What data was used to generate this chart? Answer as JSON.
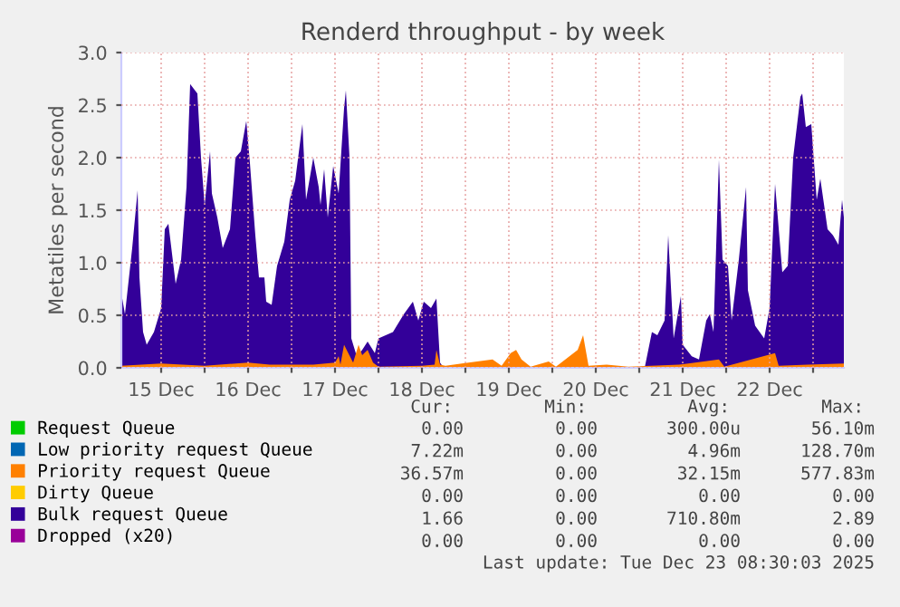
{
  "chart_data": {
    "type": "area",
    "title": "Renderd throughput - by week",
    "ylabel": "Metatiles per second",
    "xlim": [
      "2025-12-15T01:00",
      "2025-12-23T08:30"
    ],
    "xticks": [
      {
        "value": "2025-12-15T12:00",
        "label": "15 Dec"
      },
      {
        "value": "2025-12-16T00:00",
        "label": null
      },
      {
        "value": "2025-12-16T12:00",
        "label": "16 Dec"
      },
      {
        "value": "2025-12-17T00:00",
        "label": null
      },
      {
        "value": "2025-12-17T12:00",
        "label": "17 Dec"
      },
      {
        "value": "2025-12-18T00:00",
        "label": null
      },
      {
        "value": "2025-12-18T12:00",
        "label": "18 Dec"
      },
      {
        "value": "2025-12-19T00:00",
        "label": null
      },
      {
        "value": "2025-12-19T12:00",
        "label": "19 Dec"
      },
      {
        "value": "2025-12-20T00:00",
        "label": null
      },
      {
        "value": "2025-12-20T12:00",
        "label": "20 Dec"
      },
      {
        "value": "2025-12-21T00:00",
        "label": null
      },
      {
        "value": "2025-12-21T12:00",
        "label": "21 Dec"
      },
      {
        "value": "2025-12-22T00:00",
        "label": null
      },
      {
        "value": "2025-12-22T12:00",
        "label": "22 Dec"
      },
      {
        "value": "2025-12-23T00:00",
        "label": null
      }
    ],
    "ylim": [
      0,
      3.0
    ],
    "yticks": [
      {
        "value": 0,
        "label": "0.0"
      },
      {
        "value": 0.5,
        "label": "0.5"
      },
      {
        "value": 1.0,
        "label": "1.0"
      },
      {
        "value": 1.5,
        "label": "1.5"
      },
      {
        "value": 2.0,
        "label": "2.0"
      },
      {
        "value": 2.5,
        "label": "2.5"
      },
      {
        "value": 3.0,
        "label": "3.0"
      }
    ],
    "grid": true,
    "legend": "bottom",
    "series": [
      {
        "name": "Request Queue",
        "color": "#00cc00"
      },
      {
        "name": "Low priority request Queue",
        "color": "#0066b3"
      },
      {
        "name": "Priority request Queue",
        "color": "#ff8000",
        "x": [
          "2025-12-15T01:00",
          "2025-12-15T12:00",
          "2025-12-16T00:00",
          "2025-12-16T12:00",
          "2025-12-16T18:00",
          "2025-12-17T06:00",
          "2025-12-17T12:00",
          "2025-12-17T13:00",
          "2025-12-17T13:30",
          "2025-12-17T14:30",
          "2025-12-17T15:30",
          "2025-12-17T17:00",
          "2025-12-17T18:30",
          "2025-12-17T19:30",
          "2025-12-17T21:00",
          "2025-12-17T22:30",
          "2025-12-18T00:00",
          "2025-12-18T12:00",
          "2025-12-18T15:30",
          "2025-12-18T16:00",
          "2025-12-18T17:00",
          "2025-12-18T18:30",
          "2025-12-19T07:30",
          "2025-12-19T10:00",
          "2025-12-19T12:30",
          "2025-12-19T14:00",
          "2025-12-19T15:30",
          "2025-12-19T18:00",
          "2025-12-19T23:00",
          "2025-12-20T01:00",
          "2025-12-20T07:00",
          "2025-12-20T08:30",
          "2025-12-20T10:00",
          "2025-12-20T15:00",
          "2025-12-20T21:00",
          "2025-12-21T11:00",
          "2025-12-21T22:00",
          "2025-12-21T23:30",
          "2025-12-22T13:30",
          "2025-12-22T14:30",
          "2025-12-22T22:30",
          "2025-12-23T08:30"
        ],
        "values": [
          0.02,
          0.04,
          0.02,
          0.05,
          0.03,
          0.03,
          0.05,
          0.11,
          0.03,
          0.22,
          0.15,
          0.05,
          0.22,
          0.12,
          0.17,
          0.05,
          0.01,
          0.02,
          0.03,
          0.17,
          0.03,
          0.02,
          0.08,
          0.02,
          0.14,
          0.17,
          0.08,
          0.01,
          0.06,
          0.01,
          0.17,
          0.31,
          0.02,
          0.03,
          0.01,
          0.03,
          0.08,
          0.01,
          0.14,
          0.02,
          0.03,
          0.04
        ]
      },
      {
        "name": "Dirty Queue",
        "color": "#ffcc00"
      },
      {
        "name": "Bulk request Queue",
        "color": "#330099",
        "x": [
          "2025-12-15T01:00",
          "2025-12-15T02:00",
          "2025-12-15T04:00",
          "2025-12-15T05:30",
          "2025-12-15T06:00",
          "2025-12-15T07:00",
          "2025-12-15T08:00",
          "2025-12-15T10:00",
          "2025-12-15T12:00",
          "2025-12-15T13:00",
          "2025-12-15T14:00",
          "2025-12-15T16:00",
          "2025-12-15T17:30",
          "2025-12-15T19:00",
          "2025-12-15T20:00",
          "2025-12-15T22:00",
          "2025-12-15T23:00",
          "2025-12-16T00:00",
          "2025-12-16T01:30",
          "2025-12-16T02:00",
          "2025-12-16T03:30",
          "2025-12-16T05:00",
          "2025-12-16T07:00",
          "2025-12-16T08:30",
          "2025-12-16T10:00",
          "2025-12-16T11:30",
          "2025-12-16T12:30",
          "2025-12-16T14:00",
          "2025-12-16T15:00",
          "2025-12-16T16:30",
          "2025-12-16T17:00",
          "2025-12-16T18:30",
          "2025-12-16T20:00",
          "2025-12-16T22:00",
          "2025-12-16T23:30",
          "2025-12-17T01:00",
          "2025-12-17T03:00",
          "2025-12-17T04:00",
          "2025-12-17T06:00",
          "2025-12-17T07:30",
          "2025-12-17T08:00",
          "2025-12-17T09:00",
          "2025-12-17T10:00",
          "2025-12-17T11:30",
          "2025-12-17T13:00",
          "2025-12-17T14:30",
          "2025-12-17T15:00",
          "2025-12-17T16:00",
          "2025-12-17T16:30",
          "2025-12-17T18:00",
          "2025-12-17T19:30",
          "2025-12-17T21:00",
          "2025-12-17T23:00",
          "2025-12-18T00:00",
          "2025-12-18T04:00",
          "2025-12-18T07:00",
          "2025-12-18T09:30",
          "2025-12-18T11:00",
          "2025-12-18T12:30",
          "2025-12-18T14:30",
          "2025-12-18T16:00",
          "2025-12-18T17:00",
          "2025-12-18T18:00",
          "2025-12-21T01:30",
          "2025-12-21T03:30",
          "2025-12-21T05:00",
          "2025-12-21T07:00",
          "2025-12-21T08:00",
          "2025-12-21T09:30",
          "2025-12-21T11:30",
          "2025-12-21T12:00",
          "2025-12-21T14:30",
          "2025-12-21T16:30",
          "2025-12-21T18:30",
          "2025-12-21T19:30",
          "2025-12-21T20:30",
          "2025-12-21T22:00",
          "2025-12-21T23:00",
          "2025-12-22T00:30",
          "2025-12-22T01:30",
          "2025-12-22T03:30",
          "2025-12-22T05:30",
          "2025-12-22T06:00",
          "2025-12-22T08:00",
          "2025-12-22T10:30",
          "2025-12-22T12:00",
          "2025-12-22T13:30",
          "2025-12-22T15:30",
          "2025-12-22T17:00",
          "2025-12-22T18:30",
          "2025-12-22T20:30",
          "2025-12-22T21:00",
          "2025-12-22T22:00",
          "2025-12-22T23:30",
          "2025-12-23T01:00",
          "2025-12-23T02:00",
          "2025-12-23T04:00",
          "2025-12-23T05:30",
          "2025-12-23T07:00",
          "2025-12-23T08:00",
          "2025-12-23T08:30"
        ],
        "values": [
          0.71,
          0.51,
          1.14,
          1.69,
          0.86,
          0.34,
          0.22,
          0.34,
          0.57,
          1.32,
          1.37,
          0.8,
          1.03,
          1.72,
          2.7,
          2.61,
          2.0,
          1.55,
          2.06,
          1.66,
          1.43,
          1.14,
          1.32,
          2.0,
          2.06,
          2.35,
          1.95,
          1.26,
          0.86,
          0.86,
          0.63,
          0.6,
          0.97,
          1.2,
          1.6,
          1.78,
          2.32,
          1.6,
          2.0,
          1.72,
          1.55,
          1.89,
          1.43,
          1.92,
          1.66,
          2.47,
          2.64,
          2.0,
          0.28,
          0.11,
          0.17,
          0.25,
          0.14,
          0.28,
          0.34,
          0.51,
          0.63,
          0.45,
          0.63,
          0.57,
          0.66,
          0.05,
          0,
          0,
          0.34,
          0.31,
          0.45,
          1.26,
          0.28,
          0.68,
          0.22,
          0.11,
          0.08,
          0.45,
          0.51,
          0.34,
          1.98,
          1.03,
          0.97,
          0.45,
          1.03,
          1.72,
          0.74,
          0.4,
          0.28,
          0.57,
          1.75,
          0.91,
          0.97,
          2.0,
          2.58,
          2.61,
          2.29,
          2.32,
          1.6,
          1.8,
          1.32,
          1.26,
          1.17,
          1.6,
          1.43
        ]
      },
      {
        "name": "Dropped (x20)",
        "color": "#990099"
      }
    ],
    "annotations": [
      "Cur:",
      "Min:",
      "Avg:",
      "Max:",
      "0.00",
      "0.00",
      "300.00u",
      "56.10m",
      "7.22m",
      "0.00",
      "4.96m",
      "128.70m",
      "36.57m",
      "0.00",
      "32.15m",
      "577.83m",
      "0.00",
      "0.00",
      "0.00",
      "0.00",
      "1.66",
      "0.00",
      "710.80m",
      "2.89",
      "0.00",
      "0.00",
      "0.00",
      "0.00",
      "Last update: Tue Dec 23 08:30:03 2025"
    ]
  }
}
